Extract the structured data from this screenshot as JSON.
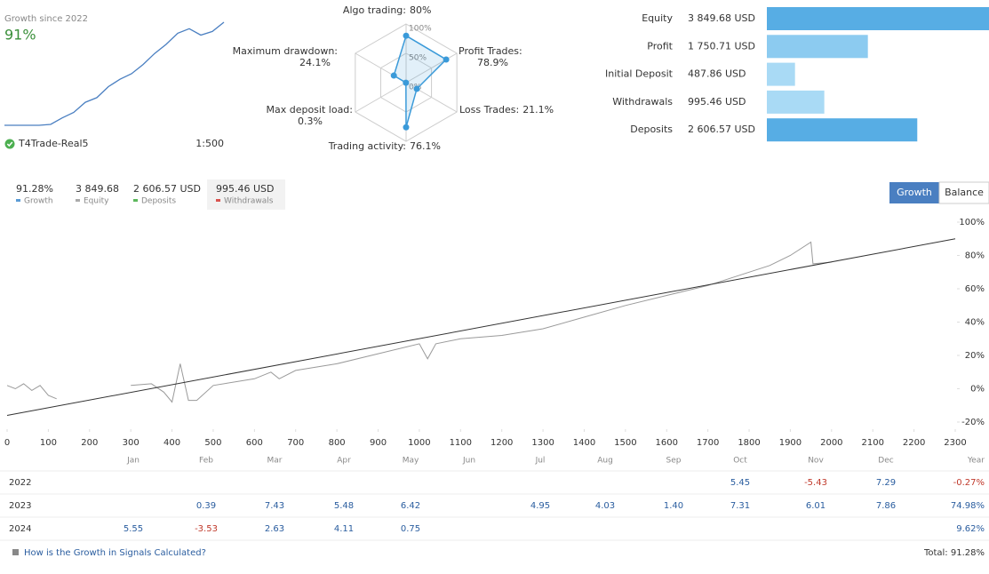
{
  "header": {
    "growth_title": "Growth since 2022",
    "growth_value": "91%",
    "account": "T4Trade-Real5",
    "leverage": "1:500"
  },
  "chart_data": [
    {
      "type": "line",
      "color": "#4a7fc1",
      "values": [
        0,
        0,
        0,
        0,
        1,
        8,
        14,
        25,
        30,
        42,
        50,
        56,
        66,
        78,
        88,
        100,
        105,
        98,
        102,
        112
      ]
    },
    {
      "type": "radar",
      "color": "#3a9ad9",
      "categories": [
        "Algo trading:",
        "Profit Trades:",
        "Loss Trades:",
        "Trading activity:",
        "Max deposit load:",
        "Maximum drawdown:"
      ],
      "values": [
        80,
        78.9,
        21.1,
        76.1,
        0.3,
        24.1
      ],
      "value_labels": [
        "80%",
        "78.9%",
        "21.1%",
        "76.1%",
        "0.3%",
        "24.1%"
      ],
      "rlim": [
        0,
        100
      ],
      "rticks": [
        {
          "value": 0,
          "label": "0%"
        },
        {
          "value": 50,
          "label": "50%"
        },
        {
          "value": 100,
          "label": "100%"
        }
      ]
    },
    {
      "type": "hbar",
      "categories": [
        "Equity",
        "Profit",
        "Initial Deposit",
        "Withdrawals",
        "Deposits"
      ],
      "values": [
        3849.68,
        1750.71,
        487.86,
        995.46,
        2606.57
      ],
      "value_labels": [
        "3 849.68 USD",
        "1 750.71 USD",
        "487.86 USD",
        "995.46 USD",
        "2 606.57 USD"
      ],
      "colors": [
        "#57ade4",
        "#8ccbf0",
        "#a9daf5",
        "#a9daf5",
        "#57ade4"
      ]
    },
    {
      "type": "line",
      "grid": false,
      "series": [
        {
          "color": "#9a9a9a",
          "x": [
            0,
            20,
            40,
            60,
            80,
            100,
            120,
            140,
            300,
            350,
            380,
            400,
            420,
            440,
            460,
            500,
            600,
            640,
            660,
            700,
            800,
            900,
            1000,
            1020,
            1040,
            1100,
            1200,
            1300,
            1400,
            1500,
            1600,
            1700,
            1800,
            1850,
            1900,
            1950,
            1955,
            2000
          ],
          "values": [
            2,
            0,
            3,
            -1,
            2,
            -4,
            -6,
            null,
            2,
            3,
            -2,
            -8,
            15,
            -7,
            -7,
            2,
            6,
            10,
            6,
            11,
            15,
            21,
            27,
            18,
            27,
            30,
            32,
            36,
            43,
            50,
            56,
            62,
            70,
            74,
            80,
            88,
            75,
            76
          ]
        },
        {
          "color": "#333333",
          "x": [
            0,
            2300
          ],
          "values": [
            -16,
            90
          ]
        }
      ],
      "xlim": [
        0,
        2300
      ],
      "xticks": [
        0,
        100,
        200,
        300,
        400,
        500,
        600,
        700,
        800,
        900,
        1000,
        1100,
        1200,
        1300,
        1400,
        1500,
        1600,
        1700,
        1800,
        1900,
        2000,
        2100,
        2200,
        2300
      ],
      "ylim": [
        -20,
        100
      ],
      "yticks": [
        {
          "value": -20,
          "label": "-20%"
        },
        {
          "value": 0,
          "label": "0%"
        },
        {
          "value": 20,
          "label": "20%"
        },
        {
          "value": 40,
          "label": "40%"
        },
        {
          "value": 60,
          "label": "60%"
        },
        {
          "value": 80,
          "label": "80%"
        },
        {
          "value": 100,
          "label": "100%"
        }
      ]
    }
  ],
  "summary": [
    {
      "value": "91.28%",
      "label": "Growth",
      "color": "#5b9bd5"
    },
    {
      "value": "3 849.68",
      "label": "Equity",
      "color": "#aaaaaa"
    },
    {
      "value": "2 606.57 USD",
      "label": "Deposits",
      "color": "#5cb85c"
    },
    {
      "value": "995.46 USD",
      "label": "Withdrawals",
      "color": "#d9534f"
    }
  ],
  "tabs": [
    "Growth",
    "Balance"
  ],
  "table": {
    "header": [
      null,
      "Jan",
      "Feb",
      "Mar",
      "Apr",
      "May",
      "Jun",
      "Jul",
      "Aug",
      "Sep",
      "Oct",
      "Nov",
      "Dec",
      "Year"
    ],
    "rows": [
      [
        "2022",
        null,
        null,
        null,
        null,
        null,
        null,
        null,
        null,
        null,
        "5.45",
        "-5.43",
        "7.29",
        "-0.27%"
      ],
      [
        "2023",
        null,
        "0.39",
        "7.43",
        "5.48",
        "6.42",
        null,
        "4.95",
        "4.03",
        "1.40",
        "7.31",
        "6.01",
        "7.86",
        "74.98%"
      ],
      [
        "2024",
        "5.55",
        "-3.53",
        "2.63",
        "4.11",
        "0.75",
        null,
        null,
        null,
        null,
        null,
        null,
        null,
        "9.62%"
      ]
    ]
  },
  "footer": {
    "link": "How is the Growth in Signals Calculated?",
    "total": "Total: 91.28%"
  }
}
